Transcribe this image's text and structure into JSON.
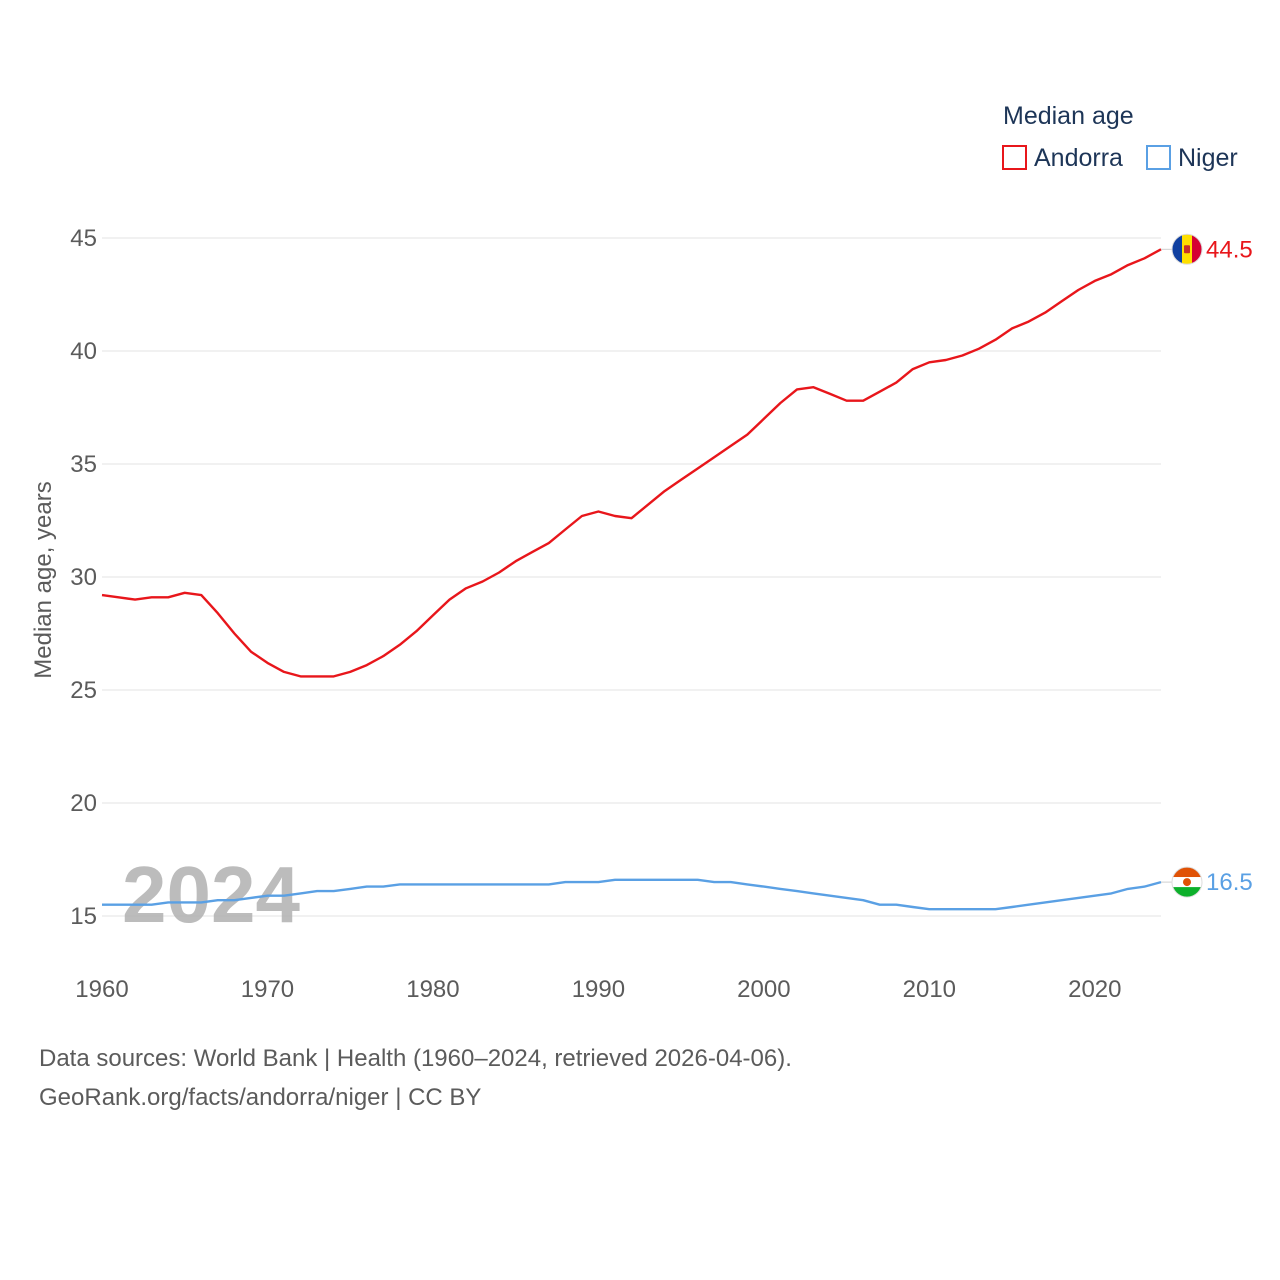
{
  "chart_data": {
    "type": "line",
    "title": "Median age",
    "ylabel": "Median age, years",
    "xlabel": "",
    "xlim": [
      1960,
      2024
    ],
    "ylim": [
      13,
      46.5
    ],
    "yticks": [
      15,
      20,
      25,
      30,
      35,
      40,
      45
    ],
    "xticks": [
      1960,
      1970,
      1980,
      1990,
      2000,
      2010,
      2020
    ],
    "grid": true,
    "legend_position": "top-right",
    "year_watermark": "2024",
    "series": [
      {
        "name": "Andorra",
        "color": "#e8161b",
        "end_label": "44.5",
        "flag": "andorra-flag-icon",
        "x": [
          1960,
          1961,
          1962,
          1963,
          1964,
          1965,
          1966,
          1967,
          1968,
          1969,
          1970,
          1971,
          1972,
          1973,
          1974,
          1975,
          1976,
          1977,
          1978,
          1979,
          1980,
          1981,
          1982,
          1983,
          1984,
          1985,
          1986,
          1987,
          1988,
          1989,
          1990,
          1991,
          1992,
          1993,
          1994,
          1995,
          1996,
          1997,
          1998,
          1999,
          2000,
          2001,
          2002,
          2003,
          2004,
          2005,
          2006,
          2007,
          2008,
          2009,
          2010,
          2011,
          2012,
          2013,
          2014,
          2015,
          2016,
          2017,
          2018,
          2019,
          2020,
          2021,
          2022,
          2023,
          2024
        ],
        "values": [
          29.2,
          29.1,
          29.0,
          29.1,
          29.1,
          29.3,
          29.2,
          28.4,
          27.5,
          26.7,
          26.2,
          25.8,
          25.6,
          25.6,
          25.6,
          25.8,
          26.1,
          26.5,
          27.0,
          27.6,
          28.3,
          29.0,
          29.5,
          29.8,
          30.2,
          30.7,
          31.1,
          31.5,
          32.1,
          32.7,
          32.9,
          32.7,
          32.6,
          33.2,
          33.8,
          34.3,
          34.8,
          35.3,
          35.8,
          36.3,
          37.0,
          37.7,
          38.3,
          38.4,
          38.1,
          37.8,
          37.8,
          38.2,
          38.6,
          39.2,
          39.5,
          39.6,
          39.8,
          40.1,
          40.5,
          41.0,
          41.3,
          41.7,
          42.2,
          42.7,
          43.1,
          43.4,
          43.8,
          44.1,
          44.5
        ]
      },
      {
        "name": "Niger",
        "color": "#5aa0e4",
        "end_label": "16.5",
        "flag": "niger-flag-icon",
        "x": [
          1960,
          1961,
          1962,
          1963,
          1964,
          1965,
          1966,
          1967,
          1968,
          1969,
          1970,
          1971,
          1972,
          1973,
          1974,
          1975,
          1976,
          1977,
          1978,
          1979,
          1980,
          1981,
          1982,
          1983,
          1984,
          1985,
          1986,
          1987,
          1988,
          1989,
          1990,
          1991,
          1992,
          1993,
          1994,
          1995,
          1996,
          1997,
          1998,
          1999,
          2000,
          2001,
          2002,
          2003,
          2004,
          2005,
          2006,
          2007,
          2008,
          2009,
          2010,
          2011,
          2012,
          2013,
          2014,
          2015,
          2016,
          2017,
          2018,
          2019,
          2020,
          2021,
          2022,
          2023,
          2024
        ],
        "values": [
          15.5,
          15.5,
          15.5,
          15.5,
          15.6,
          15.6,
          15.6,
          15.7,
          15.7,
          15.8,
          15.9,
          15.9,
          16.0,
          16.1,
          16.1,
          16.2,
          16.3,
          16.3,
          16.4,
          16.4,
          16.4,
          16.4,
          16.4,
          16.4,
          16.4,
          16.4,
          16.4,
          16.4,
          16.5,
          16.5,
          16.5,
          16.6,
          16.6,
          16.6,
          16.6,
          16.6,
          16.6,
          16.5,
          16.5,
          16.4,
          16.3,
          16.2,
          16.1,
          16.0,
          15.9,
          15.8,
          15.7,
          15.5,
          15.5,
          15.4,
          15.3,
          15.3,
          15.3,
          15.3,
          15.3,
          15.4,
          15.5,
          15.6,
          15.7,
          15.8,
          15.9,
          16.0,
          16.2,
          16.3,
          16.5
        ]
      }
    ]
  },
  "footer": {
    "sources": "Data sources: World Bank | Health (1960–2024, retrieved 2026-04-06).",
    "credit": "GeoRank.org/facts/andorra/niger | CC BY"
  }
}
